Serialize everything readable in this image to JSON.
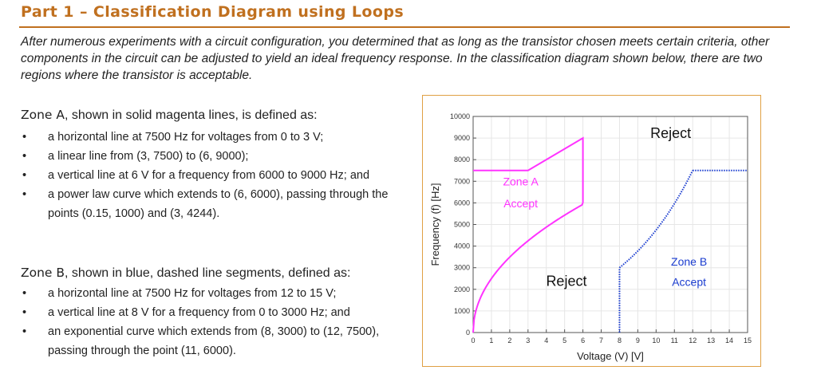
{
  "title": "Part 1 – Classification Diagram using Loops",
  "intro": "After numerous experiments with a circuit configuration, you determined that as long as the transistor chosen meets certain criteria, other components in the circuit can be adjusted to yield an ideal frequency response. In the classification diagram shown below, there are two regions where the transistor is acceptable.",
  "zone_a": {
    "name": "Zone A",
    "heading_rest": ", shown in solid magenta lines, is defined as:",
    "items": [
      "a horizontal line at 7500 Hz for voltages from 0 to 3 V;",
      "a linear line from (3, 7500) to (6, 9000);",
      "a vertical line at 6 V for a frequency from 6000 to 9000 Hz; and",
      "a power law curve which extends to (6, 6000), passing through the points (0.15, 1000) and (3, 4244)."
    ]
  },
  "zone_b": {
    "name": "Zone B",
    "heading_rest": ", shown in blue, dashed line segments, defined as:",
    "items": [
      "a horizontal line at 7500 Hz for voltages from 12 to 15 V;",
      "a vertical line at 8 V for a frequency from 0 to 3000 Hz; and",
      "an exponential curve which extends from (8, 3000) to (12, 7500), passing through the point (11, 6000)."
    ]
  },
  "bullet": "•",
  "chart_data": {
    "type": "line",
    "xlabel": "Voltage (V) [V]",
    "ylabel": "Frequency (f) [Hz]",
    "xlim": [
      0,
      15
    ],
    "ylim": [
      0,
      10000
    ],
    "xticks": [
      "0",
      "1",
      "2",
      "3",
      "4",
      "5",
      "6",
      "7",
      "8",
      "9",
      "10",
      "11",
      "12",
      "13",
      "14",
      "15"
    ],
    "yticks": [
      "0",
      "1000",
      "2000",
      "3000",
      "4000",
      "5000",
      "6000",
      "7000",
      "8000",
      "9000",
      "10000"
    ],
    "grid": true,
    "series": [
      {
        "color": "#ff33ff",
        "style": "solid",
        "x": [
          0,
          3,
          6,
          6
        ],
        "y": [
          7500,
          7500,
          9000,
          6000
        ]
      },
      {
        "color": "#ff33ff",
        "style": "solid",
        "curve": "power",
        "x": [
          0,
          0.15,
          1,
          2,
          3,
          4,
          5,
          6
        ],
        "y": [
          0,
          1000,
          2180,
          3200,
          4244,
          4950,
          5500,
          6000
        ]
      },
      {
        "color": "#1a3ccf",
        "style": "dotted",
        "x": [
          8,
          8
        ],
        "y": [
          0,
          3000
        ]
      },
      {
        "color": "#1a3ccf",
        "style": "dotted",
        "curve": "exponential",
        "x": [
          8,
          9,
          10,
          11,
          12
        ],
        "y": [
          3000,
          3780,
          4760,
          6000,
          7500
        ]
      },
      {
        "color": "#1a3ccf",
        "style": "dotted",
        "x": [
          12,
          15
        ],
        "y": [
          7500,
          7500
        ]
      }
    ],
    "annotations": [
      {
        "text": "Reject",
        "x": 10.8,
        "y": 9000,
        "size": "large"
      },
      {
        "text": "Zone A",
        "x": 2.6,
        "y": 6800,
        "color": "#ff33ff"
      },
      {
        "text": "Accept",
        "x": 2.6,
        "y": 5800,
        "color": "#ff33ff"
      },
      {
        "text": "Reject",
        "x": 5.1,
        "y": 2150,
        "size": "large"
      },
      {
        "text": "Zone B",
        "x": 11.8,
        "y": 3100,
        "color": "#1a3ccf"
      },
      {
        "text": "Accept",
        "x": 11.8,
        "y": 2150,
        "color": "#1a3ccf"
      }
    ]
  }
}
